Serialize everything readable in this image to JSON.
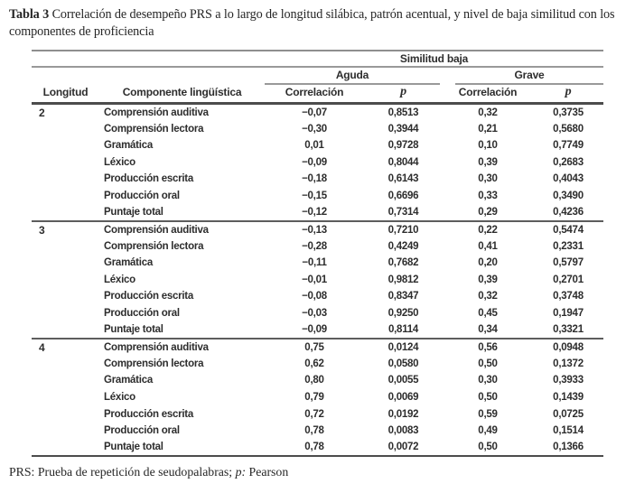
{
  "title": {
    "label": "Tabla 3",
    "text": " Correlación de desempeño PRS a lo largo de longitud silábica, patrón acentual, y nivel de baja similitud con los componentes de proficiencia"
  },
  "table": {
    "spanner": "Similitud baja",
    "group_headers": {
      "aguda": "Aguda",
      "grave": "Grave"
    },
    "columns": {
      "longitud": "Longitud",
      "componente": "Componente lingüística",
      "correlacion_aguda": "Correlación",
      "p_aguda": "p",
      "correlacion_grave": "Correlación",
      "p_grave": "p"
    },
    "groups": [
      {
        "longitud": "2",
        "rows": [
          {
            "component": "Comprensión auditiva",
            "values": [
              "−0,07",
              "0,8513",
              "0,32",
              "0,3735"
            ]
          },
          {
            "component": "Comprensión lectora",
            "values": [
              "−0,30",
              "0,3944",
              "0,21",
              "0,5680"
            ]
          },
          {
            "component": "Gramática",
            "values": [
              "0,01",
              "0,9728",
              "0,10",
              "0,7749"
            ]
          },
          {
            "component": "Léxico",
            "values": [
              "−0,09",
              "0,8044",
              "0,39",
              "0,2683"
            ]
          },
          {
            "component": "Producción escrita",
            "values": [
              "−0,18",
              "0,6143",
              "0,30",
              "0,4043"
            ]
          },
          {
            "component": "Producción oral",
            "values": [
              "−0,15",
              "0,6696",
              "0,33",
              "0,3490"
            ]
          },
          {
            "component": "Puntaje total",
            "values": [
              "−0,12",
              "0,7314",
              "0,29",
              "0,4236"
            ]
          }
        ]
      },
      {
        "longitud": "3",
        "rows": [
          {
            "component": "Comprensión auditiva",
            "values": [
              "−0,13",
              "0,7210",
              "0,22",
              "0,5474"
            ]
          },
          {
            "component": "Comprensión lectora",
            "values": [
              "−0,28",
              "0,4249",
              "0,41",
              "0,2331"
            ]
          },
          {
            "component": "Gramática",
            "values": [
              "−0,11",
              "0,7682",
              "0,20",
              "0,5797"
            ]
          },
          {
            "component": "Léxico",
            "values": [
              "−0,01",
              "0,9812",
              "0,39",
              "0,2701"
            ]
          },
          {
            "component": "Producción escrita",
            "values": [
              "−0,08",
              "0,8347",
              "0,32",
              "0,3748"
            ]
          },
          {
            "component": "Producción oral",
            "values": [
              "−0,03",
              "0,9250",
              "0,45",
              "0,1947"
            ]
          },
          {
            "component": "Puntaje total",
            "values": [
              "−0,09",
              "0,8114",
              "0,34",
              "0,3321"
            ]
          }
        ]
      },
      {
        "longitud": "4",
        "rows": [
          {
            "component": "Comprensión auditiva",
            "values": [
              "0,75",
              "0,0124",
              "0,56",
              "0,0948"
            ]
          },
          {
            "component": "Comprensión lectora",
            "values": [
              "0,62",
              "0,0580",
              "0,50",
              "0,1372"
            ]
          },
          {
            "component": "Gramática",
            "values": [
              "0,80",
              "0,0055",
              "0,30",
              "0,3933"
            ]
          },
          {
            "component": "Léxico",
            "values": [
              "0,79",
              "0,0069",
              "0,50",
              "0,1439"
            ]
          },
          {
            "component": "Producción escrita",
            "values": [
              "0,72",
              "0,0192",
              "0,59",
              "0,0725"
            ]
          },
          {
            "component": "Producción oral",
            "values": [
              "0,78",
              "0,0083",
              "0,49",
              "0,1514"
            ]
          },
          {
            "component": "Puntaje total",
            "values": [
              "0,78",
              "0,0072",
              "0,50",
              "0,1366"
            ]
          }
        ]
      }
    ]
  },
  "footnote": {
    "prefix": "PRS: Prueba de repetición de seudopalabras; ",
    "p_label": "p:",
    "suffix": " Pearson"
  }
}
